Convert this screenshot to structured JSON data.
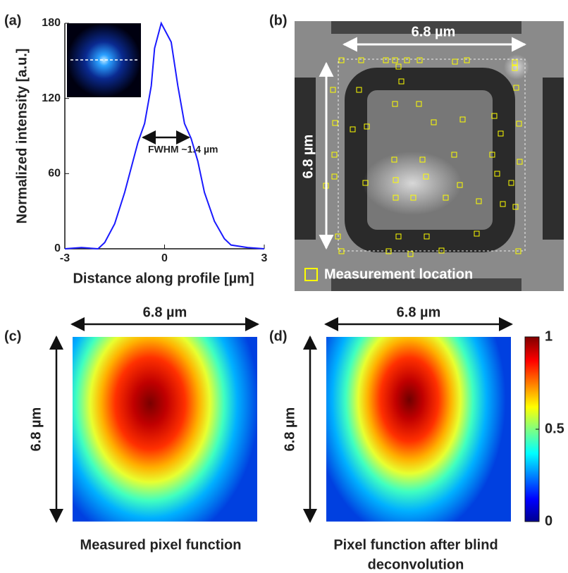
{
  "panel_labels": [
    "(a)",
    "(b)",
    "(c)",
    "(d)"
  ],
  "chart_data": {
    "type": "line",
    "x": [
      -3,
      -2.5,
      -2,
      -1.8,
      -1.5,
      -1.2,
      -1,
      -0.8,
      -0.6,
      -0.4,
      -0.3,
      -0.2,
      -0.1,
      0,
      0.1,
      0.2,
      0.4,
      0.6,
      0.8,
      1,
      1.2,
      1.5,
      1.8,
      2,
      2.5,
      3
    ],
    "values": [
      0,
      1,
      0,
      5,
      20,
      45,
      65,
      85,
      100,
      130,
      160,
      170,
      180,
      175,
      170,
      165,
      130,
      100,
      88,
      70,
      45,
      22,
      8,
      3,
      1,
      0
    ],
    "color": "#1a1aff",
    "xlabel": "Distance along profile [µm]",
    "ylabel": "Normalized intensity [a.u.]",
    "annotation": "FWHM ~1.4 µm",
    "xlim": [
      -3,
      3
    ],
    "xticks": [
      -3,
      0,
      3
    ],
    "ylim": [
      0,
      180
    ],
    "yticks": [
      0,
      60,
      120,
      180
    ]
  },
  "panel_b": {
    "width_label": "6.8 µm",
    "height_label": "6.8 µm",
    "legend": "Measurement location"
  },
  "panel_c": {
    "width_label": "6.8 µm",
    "height_label": "6.8 µm",
    "caption": [
      "Measured pixel function"
    ]
  },
  "panel_d": {
    "width_label": "6.8 µm",
    "height_label": "6.8 µm",
    "caption": [
      "Pixel function after blind",
      "deconvolution"
    ],
    "colorbar": {
      "ylim": [
        0,
        1
      ],
      "yticks": [
        0,
        0.5,
        1
      ]
    }
  }
}
